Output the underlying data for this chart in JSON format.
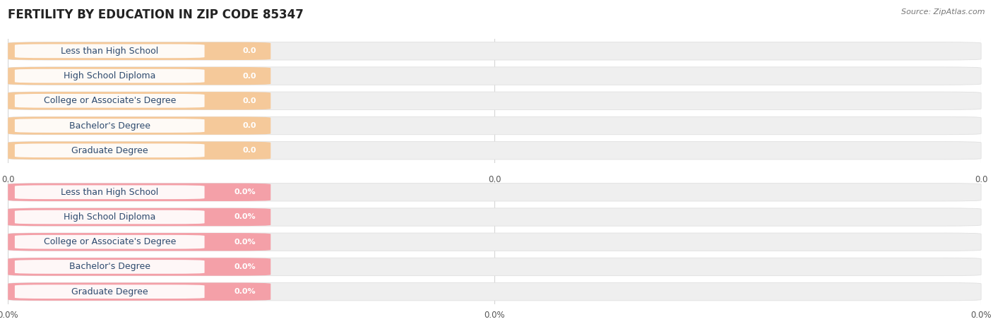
{
  "title": "FERTILITY BY EDUCATION IN ZIP CODE 85347",
  "source": "Source: ZipAtlas.com",
  "categories": [
    "Less than High School",
    "High School Diploma",
    "College or Associate's Degree",
    "Bachelor's Degree",
    "Graduate Degree"
  ],
  "group1": {
    "values": [
      0.0,
      0.0,
      0.0,
      0.0,
      0.0
    ],
    "bar_color": "#f5c99a",
    "value_format": "0.0",
    "axis_label": "0.0",
    "value_suffix": ""
  },
  "group2": {
    "values": [
      0.0,
      0.0,
      0.0,
      0.0,
      0.0
    ],
    "bar_color": "#f4a0a8",
    "value_format": "0.0%",
    "axis_label": "0.0%",
    "value_suffix": "%"
  },
  "background_color": "#ffffff",
  "bar_bg_color": "#efefef",
  "bar_border_color": "#e0e0e0",
  "title_fontsize": 12,
  "label_fontsize": 9,
  "value_fontsize": 8,
  "axis_tick_fontsize": 8.5,
  "label_text_color": "#2d4a6e",
  "value_text_color": "#ffffff",
  "source_color": "#777777",
  "grid_color": "#d5d5d5"
}
